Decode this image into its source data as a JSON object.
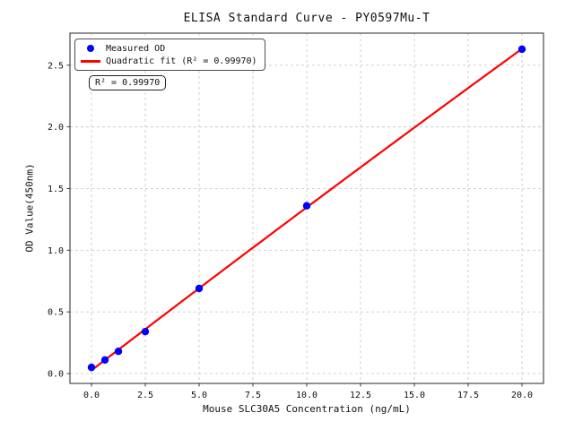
{
  "figure": {
    "kind": "matplotlib-style ELISA standard curve plot",
    "background": "#ffffff",
    "text_color": "#111111",
    "spine_color": "#262626",
    "grid_color": "#cccccc"
  },
  "chart_data": {
    "type": "scatter",
    "title": "ELISA Standard Curve - PY0597Mu-T",
    "xlabel": "Mouse SLC30A5 Concentration (ng/mL)",
    "ylabel": "OD Value(450nm)",
    "xlim": [
      -1,
      21
    ],
    "ylim": [
      -0.08,
      2.76
    ],
    "xticks": [
      0.0,
      2.5,
      5.0,
      7.5,
      10.0,
      12.5,
      15.0,
      17.5,
      20.0
    ],
    "yticks": [
      0.0,
      0.5,
      1.0,
      1.5,
      2.0,
      2.5
    ],
    "grid": true,
    "grid_style": "dashed",
    "legend_position": "upper-left",
    "series": [
      {
        "name": "Measured OD",
        "kind": "scatter",
        "marker": "circle",
        "color": "#0000ff",
        "x": [
          0,
          0.625,
          1.25,
          2.5,
          5,
          10,
          20
        ],
        "y": [
          0.05,
          0.11,
          0.18,
          0.34,
          0.69,
          1.36,
          2.63
        ]
      },
      {
        "name": "Quadratic fit (R² = 0.99970)",
        "kind": "line",
        "fit": "quadratic",
        "color": "#ff0000",
        "x_range": [
          0,
          20
        ]
      }
    ],
    "annotation": "R² = 0.99970",
    "r_squared": "0.99970"
  }
}
